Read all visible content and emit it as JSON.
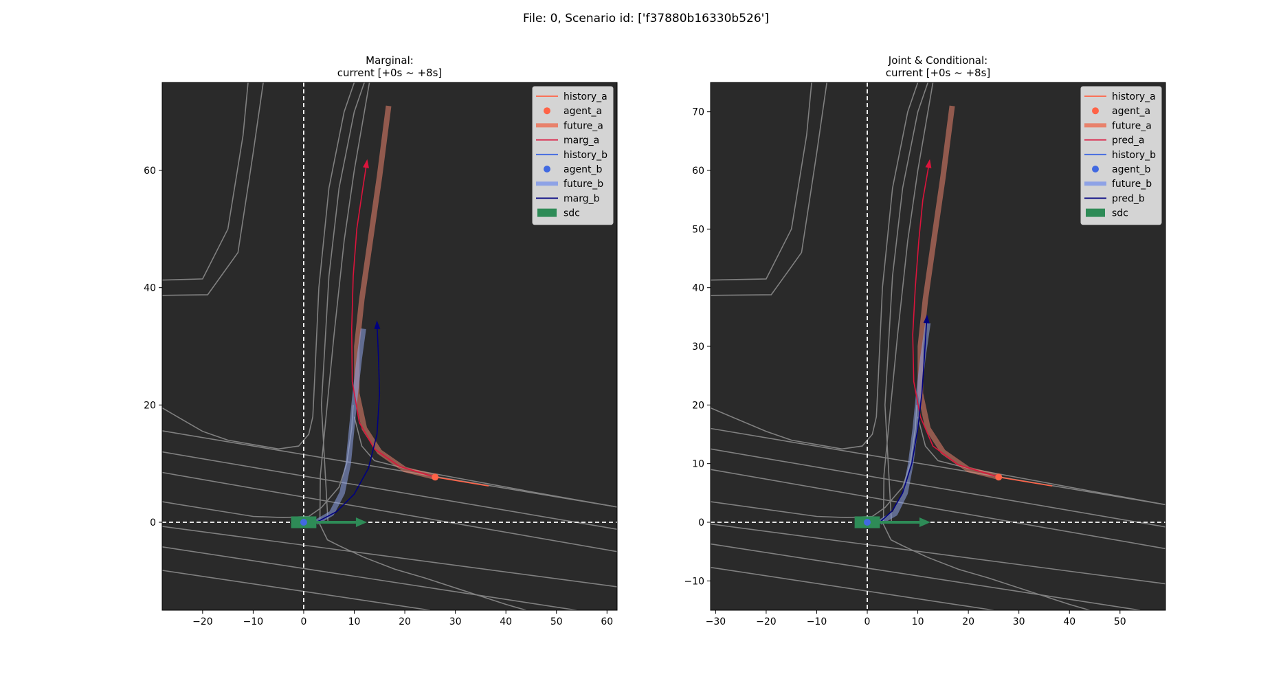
{
  "figure": {
    "suptitle": "File: 0, Scenario id: ['f37880b16330b526']",
    "colors": {
      "background": "#2a2a2a",
      "map_line": "#808080",
      "axis_line": "#ffffff",
      "history_a": "#ff6347",
      "agent_a": "#ff6347",
      "future_a": "#e8826c",
      "pred_a": "#dc143c",
      "history_b": "#4169e1",
      "agent_b": "#4169e1",
      "future_b": "#8ea2e6",
      "pred_b": "#000080",
      "sdc": "#2e8b57"
    }
  },
  "chart_data": [
    {
      "type": "line",
      "title_line1": "Marginal:",
      "title_line2": "current [+0s ~ +8s]",
      "xlim": [
        -28,
        62
      ],
      "ylim": [
        -15,
        75
      ],
      "xticks": [
        -20,
        -10,
        0,
        10,
        20,
        30,
        40,
        50,
        60
      ],
      "yticks": [
        0,
        20,
        40,
        60
      ],
      "legend_position": "upper right",
      "legend": [
        {
          "label": "history_a",
          "kind": "line",
          "color": "#ff6347"
        },
        {
          "label": "agent_a",
          "kind": "dot",
          "color": "#ff6347"
        },
        {
          "label": "future_a",
          "kind": "thick",
          "color": "#e8826c"
        },
        {
          "label": "marg_a",
          "kind": "line",
          "color": "#dc143c"
        },
        {
          "label": "history_b",
          "kind": "line",
          "color": "#4169e1"
        },
        {
          "label": "agent_b",
          "kind": "dot",
          "color": "#4169e1"
        },
        {
          "label": "future_b",
          "kind": "thick",
          "color": "#8ea2e6"
        },
        {
          "label": "marg_b",
          "kind": "line",
          "color": "#000080"
        },
        {
          "label": "sdc",
          "kind": "rect",
          "color": "#2e8b57"
        }
      ],
      "series": [
        {
          "key": "history_a",
          "points": [
            [
              36.5,
              6.2
            ],
            [
              26,
              7.7
            ]
          ]
        },
        {
          "key": "agent_a",
          "points": [
            [
              26,
              7.7
            ]
          ]
        },
        {
          "key": "future_a",
          "points": [
            [
              26,
              7.7
            ],
            [
              20,
              9
            ],
            [
              15,
              12
            ],
            [
              12,
              16
            ],
            [
              10.5,
              22
            ],
            [
              10.5,
              30
            ],
            [
              11.5,
              38
            ],
            [
              13,
              47
            ],
            [
              15,
              59
            ],
            [
              16.8,
              71
            ]
          ]
        },
        {
          "key": "marg_a",
          "points": [
            [
              26,
              7.7
            ],
            [
              19,
              9.5
            ],
            [
              14,
              12.5
            ],
            [
              11,
              17
            ],
            [
              9.6,
              24
            ],
            [
              9.5,
              33
            ],
            [
              9.8,
              42
            ],
            [
              10.5,
              50
            ],
            [
              11.7,
              57
            ],
            [
              12.5,
              61.5
            ]
          ]
        },
        {
          "key": "future_b",
          "points": [
            [
              2.5,
              0
            ],
            [
              5.5,
              1.5
            ],
            [
              7.6,
              5
            ],
            [
              8.8,
              10
            ],
            [
              9.5,
              16
            ],
            [
              10.2,
              22
            ],
            [
              11,
              28
            ],
            [
              11.8,
              33
            ]
          ]
        },
        {
          "key": "marg_b",
          "points": [
            [
              2.5,
              0
            ],
            [
              6.5,
              1.8
            ],
            [
              10,
              4.8
            ],
            [
              12.8,
              9.2
            ],
            [
              14.5,
              15
            ],
            [
              15,
              22
            ],
            [
              14.8,
              28
            ],
            [
              14.5,
              34
            ]
          ]
        },
        {
          "key": "agent_b",
          "points": [
            [
              0,
              0
            ]
          ]
        },
        {
          "key": "sdc",
          "points": [
            [
              0,
              0
            ]
          ],
          "width": 5,
          "height": 2,
          "heading_end": [
            12.5,
            0
          ]
        }
      ],
      "map_lines": [
        [
          [
            -28,
            41.3
          ],
          [
            -20,
            41.5
          ],
          [
            -15,
            50
          ],
          [
            -12,
            66
          ],
          [
            -11,
            75
          ]
        ],
        [
          [
            -28,
            38.7
          ],
          [
            -19,
            38.8
          ],
          [
            -13,
            46
          ],
          [
            -10,
            63
          ],
          [
            -8,
            75
          ]
        ],
        [
          [
            -28,
            19.5
          ],
          [
            -20,
            15.5
          ],
          [
            -15,
            14
          ],
          [
            -5,
            12.5
          ],
          [
            -1,
            13
          ],
          [
            1,
            15
          ],
          [
            1.8,
            18
          ],
          [
            2.2,
            25
          ],
          [
            3,
            40
          ],
          [
            5,
            57
          ],
          [
            8,
            70
          ],
          [
            10,
            75
          ]
        ],
        [
          [
            4.8,
            0
          ],
          [
            3.5,
            20
          ],
          [
            5,
            42
          ],
          [
            7,
            57
          ],
          [
            10,
            70
          ],
          [
            12,
            75
          ]
        ],
        [
          [
            3.2,
            0
          ],
          [
            3.3,
            8
          ],
          [
            6,
            32
          ],
          [
            8,
            48
          ],
          [
            10,
            60
          ],
          [
            13,
            75
          ]
        ],
        [
          [
            -28,
            3.5
          ],
          [
            -10,
            1
          ],
          [
            -4,
            0.8
          ],
          [
            1,
            1
          ],
          [
            3.5,
            2.5
          ],
          [
            7,
            6
          ],
          [
            8.5,
            10
          ],
          [
            9.5,
            16
          ],
          [
            9.8,
            20
          ]
        ],
        [
          [
            3,
            0
          ],
          [
            4.7,
            -3
          ],
          [
            7,
            -4
          ],
          [
            12,
            -6
          ],
          [
            18,
            -8
          ],
          [
            24,
            -9.5
          ],
          [
            40,
            -14
          ],
          [
            44,
            -15
          ]
        ],
        [
          [
            -28,
            15.6
          ],
          [
            62,
            2.6
          ]
        ],
        [
          [
            -28,
            12
          ],
          [
            62,
            -1.2
          ]
        ],
        [
          [
            -28,
            8.5
          ],
          [
            62,
            -5
          ]
        ],
        [
          [
            -28,
            -0.7
          ],
          [
            62,
            -11
          ]
        ],
        [
          [
            -28,
            -4.2
          ],
          [
            54,
            -15
          ]
        ],
        [
          [
            -28,
            -8.2
          ],
          [
            25,
            -15
          ]
        ],
        [
          [
            10,
            18
          ],
          [
            11.5,
            13
          ],
          [
            14,
            10.5
          ],
          [
            20,
            9.2
          ],
          [
            30,
            7.6
          ],
          [
            45,
            5.2
          ],
          [
            62,
            2.6
          ]
        ]
      ]
    },
    {
      "type": "line",
      "title_line1": "Joint & Conditional:",
      "title_line2": "current [+0s ~ +8s]",
      "xlim": [
        -31,
        59
      ],
      "ylim": [
        -15,
        75
      ],
      "xticks": [
        -30,
        -20,
        -10,
        0,
        10,
        20,
        30,
        40,
        50
      ],
      "yticks": [
        -10,
        0,
        10,
        20,
        30,
        40,
        50,
        60,
        70
      ],
      "legend_position": "upper right",
      "legend": [
        {
          "label": "history_a",
          "kind": "line",
          "color": "#ff6347"
        },
        {
          "label": "agent_a",
          "kind": "dot",
          "color": "#ff6347"
        },
        {
          "label": "future_a",
          "kind": "thick",
          "color": "#e8826c"
        },
        {
          "label": "pred_a",
          "kind": "line",
          "color": "#dc143c"
        },
        {
          "label": "history_b",
          "kind": "line",
          "color": "#4169e1"
        },
        {
          "label": "agent_b",
          "kind": "dot",
          "color": "#4169e1"
        },
        {
          "label": "future_b",
          "kind": "thick",
          "color": "#8ea2e6"
        },
        {
          "label": "pred_b",
          "kind": "line",
          "color": "#000080"
        },
        {
          "label": "sdc",
          "kind": "rect",
          "color": "#2e8b57"
        }
      ],
      "series": [
        {
          "key": "history_a",
          "points": [
            [
              36.5,
              6.2
            ],
            [
              26,
              7.7
            ]
          ]
        },
        {
          "key": "agent_a",
          "points": [
            [
              26,
              7.7
            ]
          ]
        },
        {
          "key": "future_a",
          "points": [
            [
              26,
              7.7
            ],
            [
              20,
              9
            ],
            [
              15,
              12
            ],
            [
              12,
              16
            ],
            [
              10.5,
              22
            ],
            [
              10.5,
              30
            ],
            [
              11.5,
              38
            ],
            [
              13,
              47
            ],
            [
              15,
              59
            ],
            [
              16.8,
              71
            ]
          ]
        },
        {
          "key": "pred_a",
          "points": [
            [
              26,
              7.7
            ],
            [
              18,
              9.8
            ],
            [
              13,
              13
            ],
            [
              10.5,
              18
            ],
            [
              9.2,
              24
            ],
            [
              9,
              32
            ],
            [
              9.5,
              40
            ],
            [
              10.2,
              48
            ],
            [
              11,
              55
            ],
            [
              12.3,
              61.5
            ]
          ]
        },
        {
          "key": "future_b",
          "points": [
            [
              2.5,
              0
            ],
            [
              5.5,
              1.5
            ],
            [
              7.5,
              5
            ],
            [
              8.6,
              10
            ],
            [
              9.5,
              16
            ],
            [
              10.2,
              22
            ],
            [
              11,
              28
            ],
            [
              12,
              34
            ]
          ]
        },
        {
          "key": "pred_b",
          "points": [
            [
              2.5,
              0
            ],
            [
              5,
              2
            ],
            [
              7,
              5
            ],
            [
              8.8,
              10
            ],
            [
              10,
              16
            ],
            [
              10.8,
              22
            ],
            [
              11.3,
              28
            ],
            [
              11.8,
              35
            ]
          ]
        },
        {
          "key": "agent_b",
          "points": [
            [
              0,
              0
            ]
          ]
        },
        {
          "key": "sdc",
          "points": [
            [
              0,
              0
            ]
          ],
          "width": 5,
          "height": 2,
          "heading_end": [
            12.5,
            0
          ]
        }
      ],
      "map_lines": [
        [
          [
            -31,
            41.3
          ],
          [
            -20,
            41.5
          ],
          [
            -15,
            50
          ],
          [
            -12,
            66
          ],
          [
            -11,
            75
          ]
        ],
        [
          [
            -31,
            38.7
          ],
          [
            -19,
            38.8
          ],
          [
            -13,
            46
          ],
          [
            -10,
            63
          ],
          [
            -8,
            75
          ]
        ],
        [
          [
            -31,
            19.5
          ],
          [
            -20,
            15.5
          ],
          [
            -15,
            14
          ],
          [
            -5,
            12.5
          ],
          [
            -1,
            13
          ],
          [
            1,
            15
          ],
          [
            1.8,
            18
          ],
          [
            2.2,
            25
          ],
          [
            3,
            40
          ],
          [
            5,
            57
          ],
          [
            8,
            70
          ],
          [
            10,
            75
          ]
        ],
        [
          [
            4.8,
            0
          ],
          [
            3.5,
            20
          ],
          [
            5,
            42
          ],
          [
            7,
            57
          ],
          [
            10,
            70
          ],
          [
            12,
            75
          ]
        ],
        [
          [
            3.2,
            0
          ],
          [
            3.3,
            8
          ],
          [
            6,
            32
          ],
          [
            8,
            48
          ],
          [
            10,
            60
          ],
          [
            13,
            75
          ]
        ],
        [
          [
            -31,
            3.5
          ],
          [
            -10,
            1
          ],
          [
            -4,
            0.8
          ],
          [
            1,
            1
          ],
          [
            3.5,
            2.5
          ],
          [
            7,
            6
          ],
          [
            8.5,
            10
          ],
          [
            9.5,
            16
          ],
          [
            9.8,
            20
          ]
        ],
        [
          [
            3,
            0
          ],
          [
            4.7,
            -3
          ],
          [
            7,
            -4
          ],
          [
            12,
            -6
          ],
          [
            18,
            -8
          ],
          [
            24,
            -9.5
          ],
          [
            40,
            -14
          ],
          [
            44,
            -15
          ]
        ],
        [
          [
            -31,
            16
          ],
          [
            59,
            3
          ]
        ],
        [
          [
            -31,
            12.5
          ],
          [
            59,
            -0.8
          ]
        ],
        [
          [
            -31,
            9
          ],
          [
            59,
            -4.5
          ]
        ],
        [
          [
            -31,
            -0.3
          ],
          [
            59,
            -10.5
          ]
        ],
        [
          [
            -31,
            -3.7
          ],
          [
            54,
            -15
          ]
        ],
        [
          [
            -31,
            -7.7
          ],
          [
            25,
            -15
          ]
        ],
        [
          [
            10,
            18
          ],
          [
            11.5,
            13
          ],
          [
            14,
            10.5
          ],
          [
            20,
            9.2
          ],
          [
            30,
            7.6
          ],
          [
            45,
            5.2
          ],
          [
            59,
            3
          ]
        ]
      ]
    }
  ]
}
